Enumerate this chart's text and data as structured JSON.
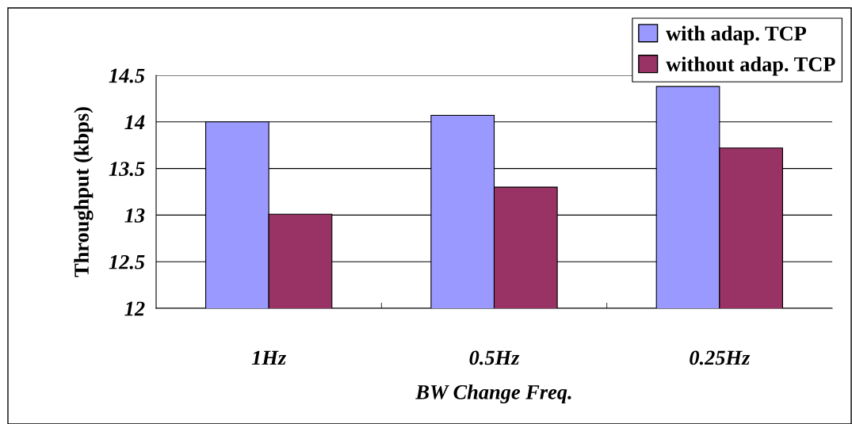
{
  "chart_data": {
    "type": "bar",
    "xlabel": "BW Change Freq.",
    "ylabel": "Throughput (kbps)",
    "categories": [
      "1Hz",
      "0.5Hz",
      "0.25Hz"
    ],
    "series": [
      {
        "name": "with adap. TCP",
        "color": "#9999ff",
        "values": [
          14.0,
          14.07,
          14.38
        ]
      },
      {
        "name": "without adap. TCP",
        "color": "#993366",
        "values": [
          13.01,
          13.3,
          13.72
        ]
      }
    ],
    "ylim": [
      12,
      14.5
    ],
    "yticks": [
      12,
      12.5,
      13,
      13.5,
      14,
      14.5
    ],
    "grid": "y",
    "legend": "top right"
  }
}
